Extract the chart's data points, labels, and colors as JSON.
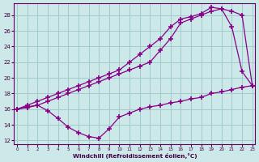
{
  "bg_color": "#cde8e8",
  "grid_color": "#a0cccc",
  "line_color": "#880088",
  "xlabel": "Windchill (Refroidissement éolien,°C)",
  "xlim": [
    -0.3,
    23.3
  ],
  "ylim": [
    11.5,
    29.5
  ],
  "xticks": [
    0,
    1,
    2,
    3,
    4,
    5,
    6,
    7,
    8,
    9,
    10,
    11,
    12,
    13,
    14,
    15,
    16,
    17,
    18,
    19,
    20,
    21,
    22,
    23
  ],
  "yticks": [
    12,
    14,
    16,
    18,
    20,
    22,
    24,
    26,
    28
  ],
  "curve1_x": [
    0,
    1,
    2,
    3,
    4,
    5,
    6,
    7,
    8,
    9,
    10,
    11,
    12,
    13,
    14,
    15,
    16,
    17,
    18,
    19,
    20,
    21,
    22,
    23
  ],
  "curve1_y": [
    16.0,
    16.3,
    16.5,
    15.8,
    14.8,
    13.7,
    13.0,
    12.5,
    12.3,
    13.5,
    15.0,
    15.5,
    16.0,
    16.3,
    16.5,
    16.8,
    17.0,
    17.3,
    17.5,
    18.0,
    18.2,
    18.5,
    18.8,
    19.0
  ],
  "curve2_x": [
    0,
    1,
    2,
    3,
    4,
    5,
    6,
    7,
    8,
    9,
    10,
    11,
    12,
    13,
    14,
    15,
    16,
    17,
    18,
    19,
    20,
    21,
    22,
    23
  ],
  "curve2_y": [
    16.0,
    16.5,
    17.0,
    17.5,
    18.0,
    18.5,
    19.0,
    19.5,
    20.0,
    20.5,
    21.0,
    22.0,
    23.0,
    24.0,
    25.0,
    26.5,
    27.5,
    27.8,
    28.2,
    29.0,
    28.8,
    26.5,
    20.8,
    19.0
  ],
  "curve3_x": [
    0,
    1,
    2,
    3,
    4,
    5,
    6,
    7,
    8,
    9,
    10,
    11,
    12,
    13,
    14,
    15,
    16,
    17,
    18,
    19,
    20,
    21,
    22,
    23
  ],
  "curve3_y": [
    16.0,
    16.2,
    16.5,
    17.0,
    17.5,
    18.0,
    18.5,
    19.0,
    19.5,
    20.0,
    20.5,
    21.0,
    21.5,
    22.0,
    23.5,
    25.0,
    27.0,
    27.5,
    28.0,
    28.5,
    28.8,
    28.5,
    28.0,
    19.0
  ]
}
